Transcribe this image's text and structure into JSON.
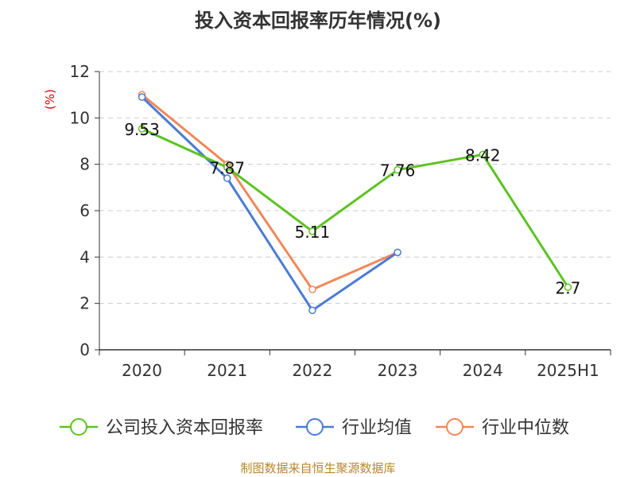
{
  "chart_data": {
    "type": "line",
    "title": "投入资本回报率历年情况(%)",
    "ylabel": "(%)",
    "xlabel": "",
    "categories": [
      "2020",
      "2021",
      "2022",
      "2023",
      "2024",
      "2025H1"
    ],
    "ylim": [
      0,
      12
    ],
    "yticks": [
      0,
      2,
      4,
      6,
      8,
      10,
      12
    ],
    "grid": true,
    "legend_position": "bottom",
    "series": [
      {
        "name": "公司投入资本回报率",
        "color": "#5cc321",
        "values": [
          9.53,
          7.87,
          5.11,
          7.76,
          8.42,
          2.7
        ],
        "labels": [
          "9.53",
          "7.87",
          "5.11",
          "7.76",
          "8.42",
          "2.7"
        ]
      },
      {
        "name": "行业均值",
        "color": "#4b7bd4",
        "values": [
          10.9,
          7.4,
          1.7,
          4.2,
          null,
          null
        ]
      },
      {
        "name": "行业中位数",
        "color": "#f0885a",
        "values": [
          11.0,
          8.0,
          2.6,
          4.2,
          null,
          null
        ]
      }
    ]
  },
  "source": "制图数据来自恒生聚源数据库"
}
